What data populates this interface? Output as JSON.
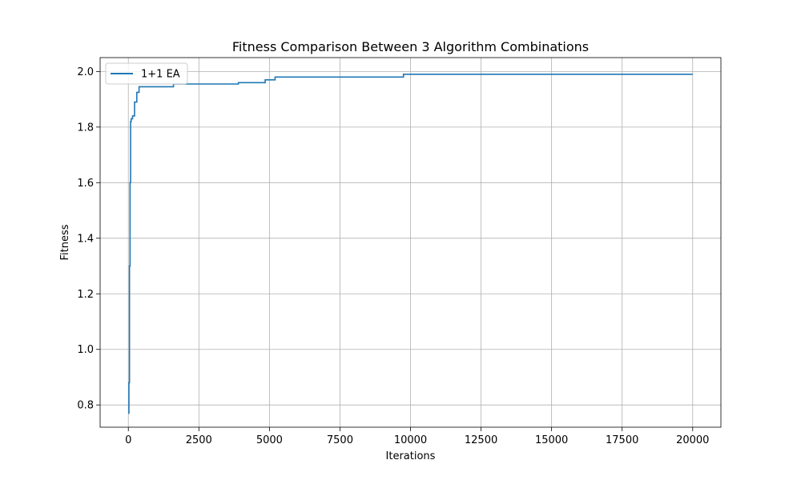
{
  "chart_data": {
    "type": "line",
    "title": "Fitness Comparison Between 3 Algorithm Combinations",
    "xlabel": "Iterations",
    "ylabel": "Fitness",
    "xlim": [
      -1000,
      21000
    ],
    "ylim": [
      0.72,
      2.05
    ],
    "xticks": [
      0,
      2500,
      5000,
      7500,
      10000,
      12500,
      15000,
      17500,
      20000
    ],
    "yticks": [
      0.8,
      1.0,
      1.2,
      1.4,
      1.6,
      1.8,
      2.0
    ],
    "xtick_labels": [
      "0",
      "2500",
      "5000",
      "7500",
      "10000",
      "12500",
      "15000",
      "17500",
      "20000"
    ],
    "ytick_labels": [
      "0.8",
      "1.0",
      "1.2",
      "1.4",
      "1.6",
      "1.8",
      "2.0"
    ],
    "grid": true,
    "legend_position": "top-left",
    "colors": {
      "series": "#1f77b4"
    },
    "series": [
      {
        "name": "1+1 EA",
        "step": true,
        "x": [
          0,
          20,
          40,
          60,
          80,
          100,
          150,
          220,
          300,
          380,
          1600,
          3900,
          4850,
          5200,
          9750,
          20000
        ],
        "y": [
          0.77,
          0.88,
          1.3,
          1.6,
          1.82,
          1.83,
          1.84,
          1.89,
          1.925,
          1.945,
          1.955,
          1.96,
          1.97,
          1.98,
          1.99,
          1.99
        ]
      }
    ]
  }
}
